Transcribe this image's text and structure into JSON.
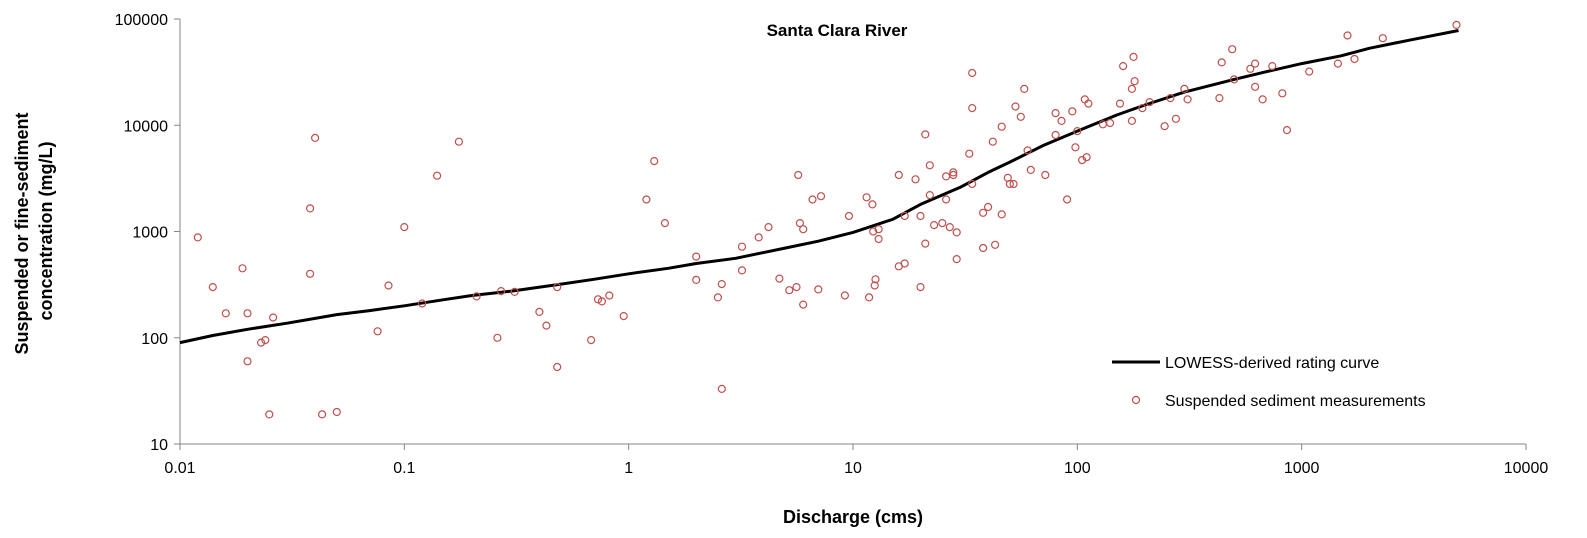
{
  "chart_data": {
    "type": "scatter",
    "title": "Santa Clara River",
    "xlabel": "Discharge (cms)",
    "ylabel_lines": [
      "Suspended or fine-sediment",
      "concentration (mg/L)"
    ],
    "xscale": "log",
    "yscale": "log",
    "xlim": [
      0.01,
      10000
    ],
    "ylim": [
      10,
      100000
    ],
    "xticks": [
      0.01,
      0.1,
      1,
      10,
      100,
      1000,
      10000
    ],
    "xtick_labels": [
      "0.01",
      "0.1",
      "1",
      "10",
      "100",
      "1000",
      "10000"
    ],
    "yticks": [
      10,
      100,
      1000,
      10000,
      100000
    ],
    "ytick_labels": [
      "10",
      "100",
      "1000",
      "10000",
      "100000"
    ],
    "grid": false,
    "legend_position": "bottom-right",
    "colors": {
      "curve": "#000000",
      "points": "#c0504d"
    },
    "series": [
      {
        "name": "LOWESS-derived rating curve",
        "kind": "line",
        "points": [
          [
            0.01,
            90
          ],
          [
            0.014,
            105
          ],
          [
            0.02,
            120
          ],
          [
            0.03,
            137
          ],
          [
            0.04,
            152
          ],
          [
            0.05,
            165
          ],
          [
            0.07,
            180
          ],
          [
            0.1,
            200
          ],
          [
            0.15,
            228
          ],
          [
            0.2,
            250
          ],
          [
            0.3,
            275
          ],
          [
            0.5,
            320
          ],
          [
            0.7,
            355
          ],
          [
            1,
            400
          ],
          [
            1.5,
            450
          ],
          [
            2,
            500
          ],
          [
            3,
            560
          ],
          [
            5,
            700
          ],
          [
            7,
            810
          ],
          [
            10,
            980
          ],
          [
            15,
            1300
          ],
          [
            20,
            1800
          ],
          [
            30,
            2600
          ],
          [
            40,
            3600
          ],
          [
            50,
            4500
          ],
          [
            70,
            6400
          ],
          [
            100,
            8800
          ],
          [
            150,
            12500
          ],
          [
            200,
            15500
          ],
          [
            300,
            20500
          ],
          [
            500,
            27000
          ],
          [
            700,
            32000
          ],
          [
            1000,
            38000
          ],
          [
            1500,
            45000
          ],
          [
            2000,
            53000
          ],
          [
            3000,
            63000
          ],
          [
            5000,
            78000
          ]
        ]
      },
      {
        "name": "Suspended sediment measurements",
        "kind": "points",
        "points": [
          [
            0.012,
            880
          ],
          [
            0.014,
            300
          ],
          [
            0.016,
            170
          ],
          [
            0.019,
            450
          ],
          [
            0.02,
            170
          ],
          [
            0.02,
            60
          ],
          [
            0.023,
            90
          ],
          [
            0.024,
            95
          ],
          [
            0.025,
            19
          ],
          [
            0.026,
            155
          ],
          [
            0.038,
            400
          ],
          [
            0.038,
            1650
          ],
          [
            0.04,
            7600
          ],
          [
            0.043,
            19
          ],
          [
            0.05,
            20
          ],
          [
            0.076,
            115
          ],
          [
            0.085,
            310
          ],
          [
            0.1,
            1100
          ],
          [
            0.12,
            210
          ],
          [
            0.14,
            3350
          ],
          [
            0.175,
            7000
          ],
          [
            0.21,
            245
          ],
          [
            0.26,
            100
          ],
          [
            0.27,
            275
          ],
          [
            0.31,
            270
          ],
          [
            0.4,
            175
          ],
          [
            0.43,
            130
          ],
          [
            0.48,
            300
          ],
          [
            0.48,
            53
          ],
          [
            0.68,
            95
          ],
          [
            0.73,
            230
          ],
          [
            0.76,
            220
          ],
          [
            0.82,
            250
          ],
          [
            0.95,
            160
          ],
          [
            1.2,
            2000
          ],
          [
            1.3,
            4600
          ],
          [
            1.45,
            1200
          ],
          [
            2.0,
            580
          ],
          [
            2.0,
            350
          ],
          [
            2.5,
            240
          ],
          [
            2.6,
            320
          ],
          [
            2.6,
            33
          ],
          [
            3.2,
            720
          ],
          [
            3.2,
            430
          ],
          [
            3.8,
            880
          ],
          [
            4.2,
            1100
          ],
          [
            4.7,
            360
          ],
          [
            5.2,
            280
          ],
          [
            5.6,
            300
          ],
          [
            5.7,
            3400
          ],
          [
            5.8,
            1200
          ],
          [
            6.0,
            1050
          ],
          [
            6.0,
            205
          ],
          [
            6.6,
            2000
          ],
          [
            7.0,
            285
          ],
          [
            7.2,
            2150
          ],
          [
            9.2,
            250
          ],
          [
            9.6,
            1400
          ],
          [
            11.5,
            2100
          ],
          [
            11.8,
            240
          ],
          [
            12.2,
            1800
          ],
          [
            12.3,
            1000
          ],
          [
            12.5,
            310
          ],
          [
            12.6,
            355
          ],
          [
            13,
            1050
          ],
          [
            13,
            850
          ],
          [
            16,
            3400
          ],
          [
            16,
            470
          ],
          [
            17,
            500
          ],
          [
            17,
            1400
          ],
          [
            19,
            3100
          ],
          [
            20,
            1400
          ],
          [
            20,
            300
          ],
          [
            21,
            8200
          ],
          [
            21,
            770
          ],
          [
            22,
            4200
          ],
          [
            22,
            2200
          ],
          [
            23,
            1150
          ],
          [
            25,
            1200
          ],
          [
            26,
            3300
          ],
          [
            26,
            2000
          ],
          [
            27,
            1100
          ],
          [
            28,
            3600
          ],
          [
            28,
            3400
          ],
          [
            29,
            980
          ],
          [
            29,
            550
          ],
          [
            33,
            5400
          ],
          [
            34,
            31000
          ],
          [
            34,
            14500
          ],
          [
            34,
            2800
          ],
          [
            38,
            1500
          ],
          [
            38,
            700
          ],
          [
            40,
            1700
          ],
          [
            42,
            7000
          ],
          [
            43,
            750
          ],
          [
            46,
            9700
          ],
          [
            46,
            1450
          ],
          [
            49,
            3200
          ],
          [
            50,
            2800
          ],
          [
            52,
            2800
          ],
          [
            53,
            15000
          ],
          [
            56,
            12000
          ],
          [
            58,
            22000
          ],
          [
            60,
            5800
          ],
          [
            62,
            3800
          ],
          [
            72,
            3400
          ],
          [
            80,
            8100
          ],
          [
            80,
            13000
          ],
          [
            85,
            11000
          ],
          [
            90,
            2000
          ],
          [
            95,
            13500
          ],
          [
            98,
            6200
          ],
          [
            100,
            8800
          ],
          [
            105,
            4700
          ],
          [
            108,
            17500
          ],
          [
            110,
            5000
          ],
          [
            112,
            16000
          ],
          [
            130,
            10200
          ],
          [
            140,
            10500
          ],
          [
            155,
            16000
          ],
          [
            160,
            36000
          ],
          [
            175,
            11000
          ],
          [
            175,
            22000
          ],
          [
            178,
            44000
          ],
          [
            180,
            26000
          ],
          [
            195,
            14500
          ],
          [
            210,
            16500
          ],
          [
            245,
            9800
          ],
          [
            260,
            18000
          ],
          [
            275,
            11500
          ],
          [
            300,
            22000
          ],
          [
            310,
            17500
          ],
          [
            430,
            18000
          ],
          [
            440,
            39000
          ],
          [
            490,
            52000
          ],
          [
            500,
            27000
          ],
          [
            590,
            34000
          ],
          [
            620,
            38000
          ],
          [
            620,
            23000
          ],
          [
            670,
            17500
          ],
          [
            740,
            36000
          ],
          [
            820,
            20000
          ],
          [
            860,
            9000
          ],
          [
            1080,
            32000
          ],
          [
            1450,
            38000
          ],
          [
            1600,
            70000
          ],
          [
            1720,
            42000
          ],
          [
            2300,
            66000
          ],
          [
            4900,
            88000
          ]
        ]
      }
    ]
  }
}
